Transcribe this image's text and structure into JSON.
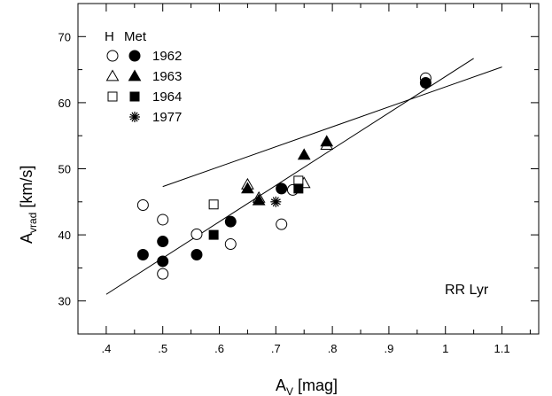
{
  "chart_data": {
    "type": "scatter",
    "title": "",
    "xlabel_main": "A",
    "xlabel_sub": "V",
    "xlabel_unit": " [mag]",
    "ylabel_main": "A",
    "ylabel_sub": "vrad",
    "ylabel_unit": " [km/s]",
    "xlim": [
      0.35,
      1.165
    ],
    "ylim": [
      25,
      75
    ],
    "xticks": [
      {
        "value": 0.4,
        "label": ".4"
      },
      {
        "value": 0.5,
        "label": ".5"
      },
      {
        "value": 0.6,
        "label": ".6"
      },
      {
        "value": 0.7,
        "label": ".7"
      },
      {
        "value": 0.8,
        "label": ".8"
      },
      {
        "value": 0.9,
        "label": ".9"
      },
      {
        "value": 1.0,
        "label": "1"
      },
      {
        "value": 1.1,
        "label": "1.1"
      }
    ],
    "yticks": [
      {
        "value": 30,
        "label": "30"
      },
      {
        "value": 40,
        "label": "40"
      },
      {
        "value": 50,
        "label": "50"
      },
      {
        "value": 60,
        "label": "60"
      },
      {
        "value": 70,
        "label": "70"
      }
    ],
    "legend": {
      "placement": "top-left",
      "header_h": "H",
      "header_met": "Met",
      "entries": [
        {
          "label": "1962",
          "h_symbol": "circle-open",
          "met_symbol": "circle-filled"
        },
        {
          "label": "1963",
          "h_symbol": "triangle-open",
          "met_symbol": "triangle-filled"
        },
        {
          "label": "1964",
          "h_symbol": "square-open",
          "met_symbol": "square-filled"
        },
        {
          "label": "1977",
          "h_symbol": "",
          "met_symbol": "star"
        }
      ]
    },
    "annotation": "RR Lyr",
    "lines": [
      {
        "x": [
          0.4,
          1.05
        ],
        "y": [
          31.0,
          66.7
        ]
      },
      {
        "x": [
          0.5,
          1.1
        ],
        "y": [
          47.3,
          65.4
        ]
      }
    ],
    "series": [
      {
        "symbol": "circle-open",
        "points": [
          {
            "x": 0.465,
            "y": 44.5
          },
          {
            "x": 0.5,
            "y": 42.3
          },
          {
            "x": 0.5,
            "y": 34.1
          },
          {
            "x": 0.56,
            "y": 40.1
          },
          {
            "x": 0.62,
            "y": 38.6
          },
          {
            "x": 0.71,
            "y": 41.6
          },
          {
            "x": 0.73,
            "y": 46.8
          },
          {
            "x": 0.965,
            "y": 63.7
          }
        ]
      },
      {
        "symbol": "circle-filled",
        "points": [
          {
            "x": 0.465,
            "y": 37.0
          },
          {
            "x": 0.5,
            "y": 39.0
          },
          {
            "x": 0.5,
            "y": 36.0
          },
          {
            "x": 0.56,
            "y": 37.0
          },
          {
            "x": 0.62,
            "y": 42.0
          },
          {
            "x": 0.71,
            "y": 47.0
          },
          {
            "x": 0.965,
            "y": 63.0
          }
        ]
      },
      {
        "symbol": "triangle-open",
        "points": [
          {
            "x": 0.65,
            "y": 47.6
          },
          {
            "x": 0.67,
            "y": 45.6
          },
          {
            "x": 0.75,
            "y": 47.8
          },
          {
            "x": 0.79,
            "y": 53.6
          }
        ]
      },
      {
        "symbol": "triangle-filled",
        "points": [
          {
            "x": 0.65,
            "y": 47.0
          },
          {
            "x": 0.67,
            "y": 45.2
          },
          {
            "x": 0.75,
            "y": 52.1
          },
          {
            "x": 0.79,
            "y": 54.1
          }
        ]
      },
      {
        "symbol": "square-open",
        "points": [
          {
            "x": 0.59,
            "y": 44.6
          },
          {
            "x": 0.74,
            "y": 48.2
          }
        ]
      },
      {
        "symbol": "square-filled",
        "points": [
          {
            "x": 0.59,
            "y": 40.0
          },
          {
            "x": 0.74,
            "y": 47.0
          }
        ]
      },
      {
        "symbol": "star",
        "points": [
          {
            "x": 0.7,
            "y": 45.0
          }
        ]
      }
    ]
  }
}
